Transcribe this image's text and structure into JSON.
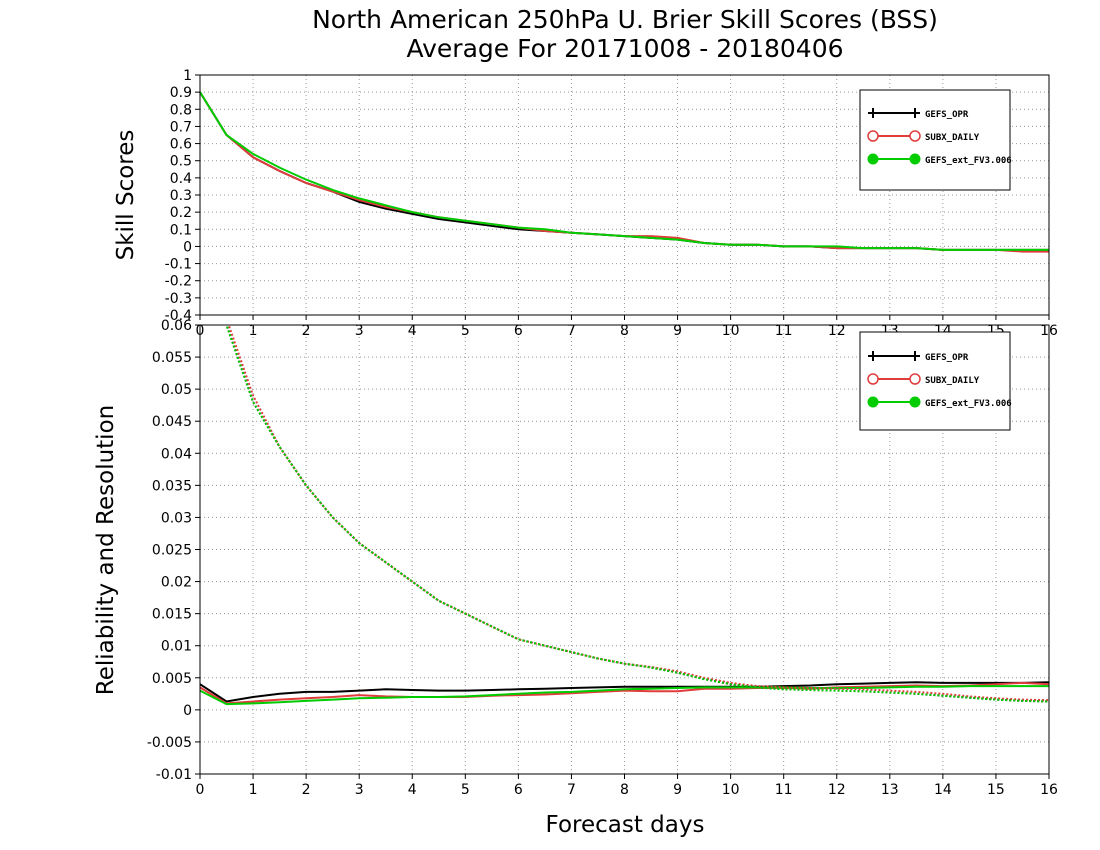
{
  "title_line1": "North American 250hPa U. Brier Skill Scores (BSS)",
  "title_line2": "Average For 20171008 - 20180406",
  "xlabel": "Forecast days",
  "chart_data": [
    {
      "type": "line",
      "ylabel": "Skill Scores",
      "xlim": [
        0,
        16
      ],
      "ylim": [
        -0.4,
        1
      ],
      "x_ticks": [
        "0",
        "1",
        "2",
        "3",
        "4",
        "5",
        "6",
        "7",
        "8",
        "9",
        "10",
        "11",
        "12",
        "13",
        "14",
        "15",
        "16"
      ],
      "y_ticks": [
        "1",
        "0.9",
        "0.8",
        "0.7",
        "0.6",
        "0.5",
        "0.4",
        "0.3",
        "0.2",
        "0.1",
        "0",
        "-0.1",
        "-0.2",
        "-0.3",
        "-0.4"
      ],
      "grid": true,
      "legend_position": "top-right",
      "x": [
        0,
        0.5,
        1,
        1.5,
        2,
        2.5,
        3,
        3.5,
        4,
        4.5,
        5,
        5.5,
        6,
        6.5,
        7,
        7.5,
        8,
        8.5,
        9,
        9.5,
        10,
        10.5,
        11,
        11.5,
        12,
        12.5,
        13,
        13.5,
        14,
        14.5,
        15,
        15.5,
        16
      ],
      "series": [
        {
          "name": "GEFS_OPR",
          "color": "#000000",
          "marker": "plus",
          "values": [
            0.9,
            0.65,
            0.52,
            0.44,
            0.37,
            0.32,
            0.26,
            0.22,
            0.19,
            0.16,
            0.14,
            0.12,
            0.1,
            0.09,
            0.08,
            0.07,
            0.06,
            0.05,
            0.04,
            0.02,
            0.01,
            0.01,
            0.0,
            0.0,
            -0.01,
            -0.01,
            -0.01,
            -0.01,
            -0.02,
            -0.02,
            -0.02,
            -0.02,
            -0.02
          ]
        },
        {
          "name": "SUBX_DAILY",
          "color": "#e03c3c",
          "marker": "open-circle",
          "values": [
            0.9,
            0.65,
            0.52,
            0.44,
            0.37,
            0.32,
            0.27,
            0.23,
            0.2,
            0.17,
            0.15,
            0.13,
            0.11,
            0.09,
            0.08,
            0.07,
            0.06,
            0.06,
            0.05,
            0.02,
            0.01,
            0.01,
            0.0,
            0.0,
            -0.01,
            -0.01,
            -0.01,
            -0.01,
            -0.02,
            -0.02,
            -0.02,
            -0.03,
            -0.03
          ]
        },
        {
          "name": "GEFS_ext_FV3.006",
          "color": "#00cc00",
          "marker": "filled-circle",
          "values": [
            0.9,
            0.65,
            0.54,
            0.46,
            0.39,
            0.33,
            0.28,
            0.24,
            0.2,
            0.17,
            0.15,
            0.13,
            0.11,
            0.1,
            0.08,
            0.07,
            0.06,
            0.05,
            0.04,
            0.02,
            0.01,
            0.01,
            0.0,
            0.0,
            0.0,
            -0.01,
            -0.01,
            -0.01,
            -0.02,
            -0.02,
            -0.02,
            -0.02,
            -0.02
          ]
        }
      ]
    },
    {
      "type": "line",
      "ylabel": "Reliability and Resolution",
      "xlim": [
        0,
        16
      ],
      "ylim": [
        -0.01,
        0.06
      ],
      "x_ticks": [
        "0",
        "1",
        "2",
        "3",
        "4",
        "5",
        "6",
        "7",
        "8",
        "9",
        "10",
        "11",
        "12",
        "13",
        "14",
        "15",
        "16"
      ],
      "y_ticks": [
        "0.06",
        "0.055",
        "0.05",
        "0.045",
        "0.04",
        "0.035",
        "0.03",
        "0.025",
        "0.02",
        "0.015",
        "0.01",
        "0.005",
        "0",
        "-0.005",
        "-0.01"
      ],
      "grid": true,
      "legend_position": "top-right",
      "x": [
        0,
        0.5,
        1,
        1.5,
        2,
        2.5,
        3,
        3.5,
        4,
        4.5,
        5,
        5.5,
        6,
        6.5,
        7,
        7.5,
        8,
        8.5,
        9,
        9.5,
        10,
        10.5,
        11,
        11.5,
        12,
        12.5,
        13,
        13.5,
        14,
        14.5,
        15,
        15.5,
        16
      ],
      "series": [
        {
          "name": "GEFS_OPR",
          "kind": "reliability",
          "color": "#000000",
          "style": "solid",
          "values": [
            0.004,
            0.0013,
            0.002,
            0.0025,
            0.0028,
            0.0028,
            0.003,
            0.0032,
            0.0031,
            0.003,
            0.003,
            0.0031,
            0.0032,
            0.0033,
            0.0034,
            0.0035,
            0.0036,
            0.0036,
            0.0036,
            0.0036,
            0.0036,
            0.0036,
            0.0037,
            0.0038,
            0.004,
            0.0041,
            0.0042,
            0.0043,
            0.0042,
            0.0042,
            0.0042,
            0.0042,
            0.0043
          ]
        },
        {
          "name": "SUBX_DAILY",
          "kind": "reliability",
          "color": "#e03c3c",
          "style": "solid",
          "values": [
            0.0035,
            0.001,
            0.0013,
            0.0016,
            0.0018,
            0.002,
            0.0023,
            0.0021,
            0.002,
            0.002,
            0.002,
            0.0022,
            0.0023,
            0.0024,
            0.0026,
            0.0028,
            0.003,
            0.0029,
            0.0029,
            0.0033,
            0.0033,
            0.0034,
            0.0034,
            0.0033,
            0.0035,
            0.0036,
            0.0037,
            0.0038,
            0.0037,
            0.0038,
            0.004,
            0.0042,
            0.004
          ]
        },
        {
          "name": "GEFS_ext_FV3.006",
          "kind": "reliability",
          "color": "#00cc00",
          "style": "solid",
          "values": [
            0.003,
            0.0009,
            0.001,
            0.0012,
            0.0014,
            0.0016,
            0.0018,
            0.0019,
            0.002,
            0.002,
            0.0021,
            0.0023,
            0.0025,
            0.0027,
            0.0028,
            0.003,
            0.0032,
            0.0033,
            0.0034,
            0.0035,
            0.0035,
            0.0035,
            0.0035,
            0.0034,
            0.0034,
            0.0034,
            0.0035,
            0.0036,
            0.0036,
            0.0037,
            0.0037,
            0.0037,
            0.0037
          ]
        },
        {
          "name": "GEFS_OPR",
          "kind": "resolution",
          "color": "#000000",
          "style": "dotted",
          "values": [
            0.09,
            0.06,
            0.048,
            0.041,
            0.035,
            0.03,
            0.026,
            0.023,
            0.02,
            0.017,
            0.015,
            0.013,
            0.011,
            0.01,
            0.009,
            0.008,
            0.0072,
            0.0066,
            0.0058,
            0.0048,
            0.004,
            0.0035,
            0.0032,
            0.0031,
            0.003,
            0.0029,
            0.0027,
            0.0025,
            0.0022,
            0.0019,
            0.0016,
            0.0014,
            0.0013
          ]
        },
        {
          "name": "SUBX_DAILY",
          "kind": "resolution",
          "color": "#e03c3c",
          "style": "dotted",
          "values": [
            0.09,
            0.061,
            0.049,
            0.041,
            0.035,
            0.03,
            0.026,
            0.023,
            0.02,
            0.017,
            0.015,
            0.013,
            0.011,
            0.01,
            0.009,
            0.008,
            0.0072,
            0.0067,
            0.006,
            0.005,
            0.0042,
            0.0037,
            0.0035,
            0.0034,
            0.0033,
            0.0032,
            0.003,
            0.0028,
            0.0025,
            0.0021,
            0.0018,
            0.0016,
            0.0015
          ]
        },
        {
          "name": "GEFS_ext_FV3.006",
          "kind": "resolution",
          "color": "#00cc00",
          "style": "dotted",
          "values": [
            0.09,
            0.06,
            0.048,
            0.041,
            0.035,
            0.03,
            0.026,
            0.023,
            0.02,
            0.017,
            0.015,
            0.013,
            0.011,
            0.01,
            0.009,
            0.008,
            0.0072,
            0.0066,
            0.0058,
            0.0048,
            0.004,
            0.0035,
            0.0032,
            0.0031,
            0.003,
            0.0029,
            0.0027,
            0.0025,
            0.0022,
            0.0019,
            0.0016,
            0.0014,
            0.0013
          ]
        }
      ]
    }
  ]
}
